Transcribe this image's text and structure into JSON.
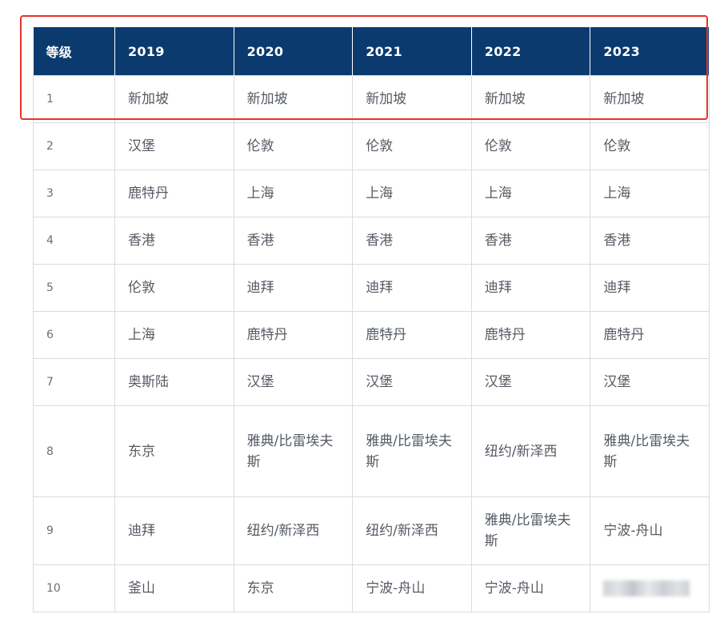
{
  "table": {
    "headers": [
      "等级",
      "2019",
      "2020",
      "2021",
      "2022",
      "2023"
    ],
    "rows": [
      [
        "1",
        "新加坡",
        "新加坡",
        "新加坡",
        "新加坡",
        "新加坡"
      ],
      [
        "2",
        "汉堡",
        "伦敦",
        "伦敦",
        "伦敦",
        "伦敦"
      ],
      [
        "3",
        "鹿特丹",
        "上海",
        "上海",
        "上海",
        "上海"
      ],
      [
        "4",
        "香港",
        "香港",
        "香港",
        "香港",
        "香港"
      ],
      [
        "5",
        "伦敦",
        "迪拜",
        "迪拜",
        "迪拜",
        "迪拜"
      ],
      [
        "6",
        "上海",
        "鹿特丹",
        "鹿特丹",
        "鹿特丹",
        "鹿特丹"
      ],
      [
        "7",
        "奥斯陆",
        "汉堡",
        "汉堡",
        "汉堡",
        "汉堡"
      ],
      [
        "8",
        "东京",
        "雅典/比雷埃夫斯",
        "雅典/比雷埃夫斯",
        "纽约/新泽西",
        "雅典/比雷埃夫斯"
      ],
      [
        "9",
        "迪拜",
        "纽约/新泽西",
        "纽约/新泽西",
        "雅典/比雷埃夫斯",
        "宁波-舟山"
      ],
      [
        "10",
        "釜山",
        "东京",
        "宁波-舟山",
        "宁波-舟山",
        ""
      ]
    ]
  },
  "colors": {
    "header_bg": "#0b3a6f",
    "header_text": "#ffffff",
    "highlight_border": "#e8322a"
  }
}
